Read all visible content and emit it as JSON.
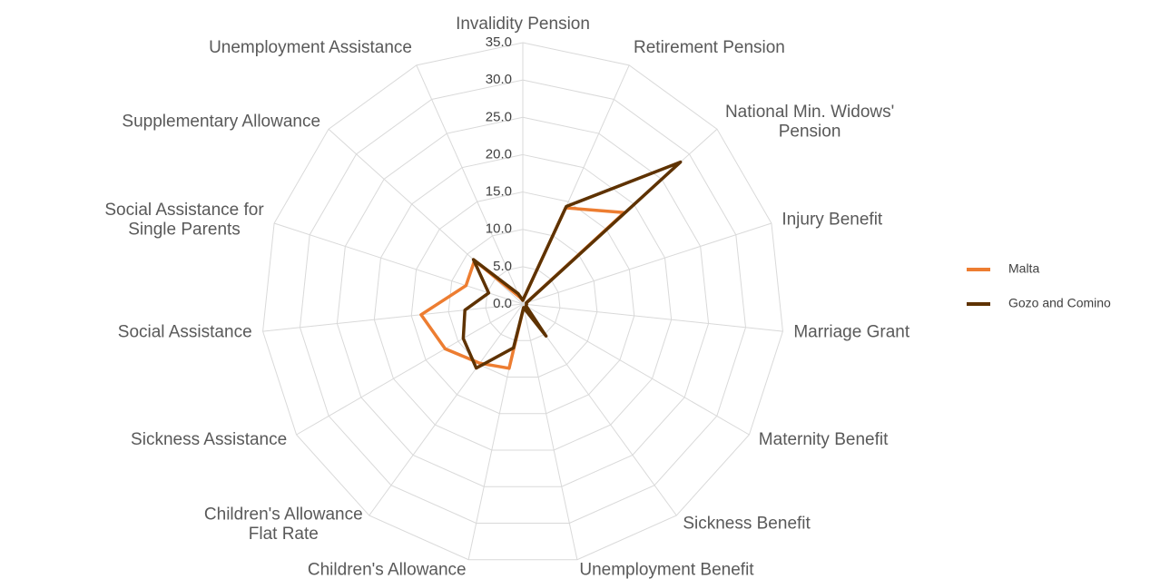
{
  "chart_data": {
    "type": "radar",
    "categories": [
      "Invalidity Pension",
      "Retirement Pension",
      "National Min. Widows' Pension",
      "Injury Benefit",
      "Marriage Grant",
      "Maternity Benefit",
      "Sickness Benefit",
      "Unemployment Benefit",
      "Children's Allowance",
      "Children's Allowance Flat Rate",
      "Sickness Assistance",
      "Social Assistance",
      "Social Assistance for Single Parents",
      "Supplementary Allowance",
      "Unemployment Assistance"
    ],
    "series": [
      {
        "name": "Malta",
        "color": "#ed7d31",
        "values": [
          0.5,
          14.1,
          18.3,
          0.5,
          0.5,
          0.5,
          2.5,
          0.5,
          8.8,
          9.8,
          12.0,
          13.7,
          8.0,
          8.7,
          1.0
        ]
      },
      {
        "name": "Gozo and Comino",
        "color": "#5e3200",
        "values": [
          0.5,
          14.3,
          28.4,
          0.5,
          0.5,
          0.5,
          5.3,
          0.5,
          6.0,
          10.6,
          9.2,
          7.8,
          4.8,
          8.9,
          1.5
        ]
      }
    ],
    "ylim": [
      0,
      35
    ],
    "yticks": [
      {
        "value": 0,
        "label": "0.0"
      },
      {
        "value": 5,
        "label": "5.0"
      },
      {
        "value": 10,
        "label": "10.0"
      },
      {
        "value": 15,
        "label": "15.0"
      },
      {
        "value": 20,
        "label": "20.0"
      },
      {
        "value": 25,
        "label": "25.0"
      },
      {
        "value": 30,
        "label": "30.0"
      },
      {
        "value": 35,
        "label": "35.0"
      }
    ],
    "grid": true,
    "legend": "right"
  }
}
